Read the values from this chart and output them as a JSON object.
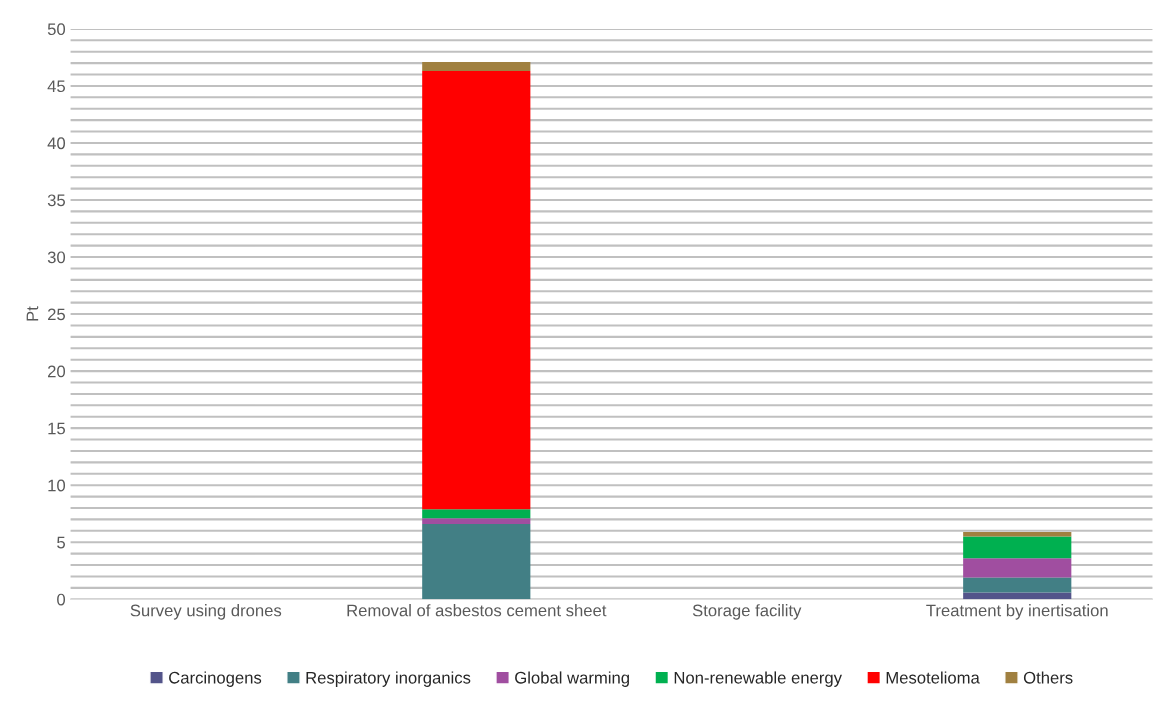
{
  "chart_data": {
    "type": "bar",
    "stacked": true,
    "ylabel": "Pt",
    "categories": [
      "Survey using drones",
      "Removal of asbestos cement sheet",
      "Storage facility",
      "Treatment by inertisation"
    ],
    "series": [
      {
        "name": "Carcinogens",
        "color": "#53548a",
        "values": [
          null,
          null,
          null,
          0.6
        ]
      },
      {
        "name": "Respiratory inorganics",
        "color": "#427f85",
        "values": [
          null,
          6.6,
          null,
          1.3
        ]
      },
      {
        "name": "Global warming",
        "color": "#a04ea0",
        "values": [
          null,
          0.5,
          null,
          1.7
        ]
      },
      {
        "name": "Non-renewable energy",
        "color": "#00b050",
        "values": [
          null,
          0.8,
          null,
          1.9
        ]
      },
      {
        "name": "Mesotelioma",
        "color": "#ff0000",
        "values": [
          null,
          38.4,
          null,
          null
        ]
      },
      {
        "name": "Others",
        "color": "#a08040",
        "values": [
          null,
          0.8,
          null,
          0.4
        ]
      }
    ],
    "ylim": [
      0,
      50
    ],
    "yticks": [
      0,
      {
        "value": 1,
        "label": null
      },
      {
        "value": 2,
        "label": null
      },
      {
        "value": 3,
        "label": null
      },
      {
        "value": 4,
        "label": null
      },
      5,
      {
        "value": 6,
        "label": null
      },
      {
        "value": 7,
        "label": null
      },
      {
        "value": 8,
        "label": null
      },
      {
        "value": 9,
        "label": null
      },
      10,
      {
        "value": 11,
        "label": null
      },
      {
        "value": 12,
        "label": null
      },
      {
        "value": 13,
        "label": null
      },
      {
        "value": 14,
        "label": null
      },
      15,
      {
        "value": 16,
        "label": null
      },
      {
        "value": 17,
        "label": null
      },
      {
        "value": 18,
        "label": null
      },
      {
        "value": 19,
        "label": null
      },
      20,
      {
        "value": 21,
        "label": null
      },
      {
        "value": 22,
        "label": null
      },
      {
        "value": 23,
        "label": null
      },
      {
        "value": 24,
        "label": null
      },
      25,
      {
        "value": 26,
        "label": null
      },
      {
        "value": 27,
        "label": null
      },
      {
        "value": 28,
        "label": null
      },
      {
        "value": 29,
        "label": null
      },
      30,
      {
        "value": 31,
        "label": null
      },
      {
        "value": 32,
        "label": null
      },
      {
        "value": 33,
        "label": null
      },
      {
        "value": 34,
        "label": null
      },
      35,
      {
        "value": 36,
        "label": null
      },
      {
        "value": 37,
        "label": null
      },
      {
        "value": 38,
        "label": null
      },
      {
        "value": 39,
        "label": null
      },
      40,
      {
        "value": 41,
        "label": null
      },
      {
        "value": 42,
        "label": null
      },
      {
        "value": 43,
        "label": null
      },
      {
        "value": 44,
        "label": null
      },
      45,
      {
        "value": 46,
        "label": null
      },
      {
        "value": 47,
        "label": null
      },
      {
        "value": 48,
        "label": null
      },
      {
        "value": 49,
        "label": null
      },
      50
    ],
    "grid": "y",
    "legend": "bottom"
  }
}
